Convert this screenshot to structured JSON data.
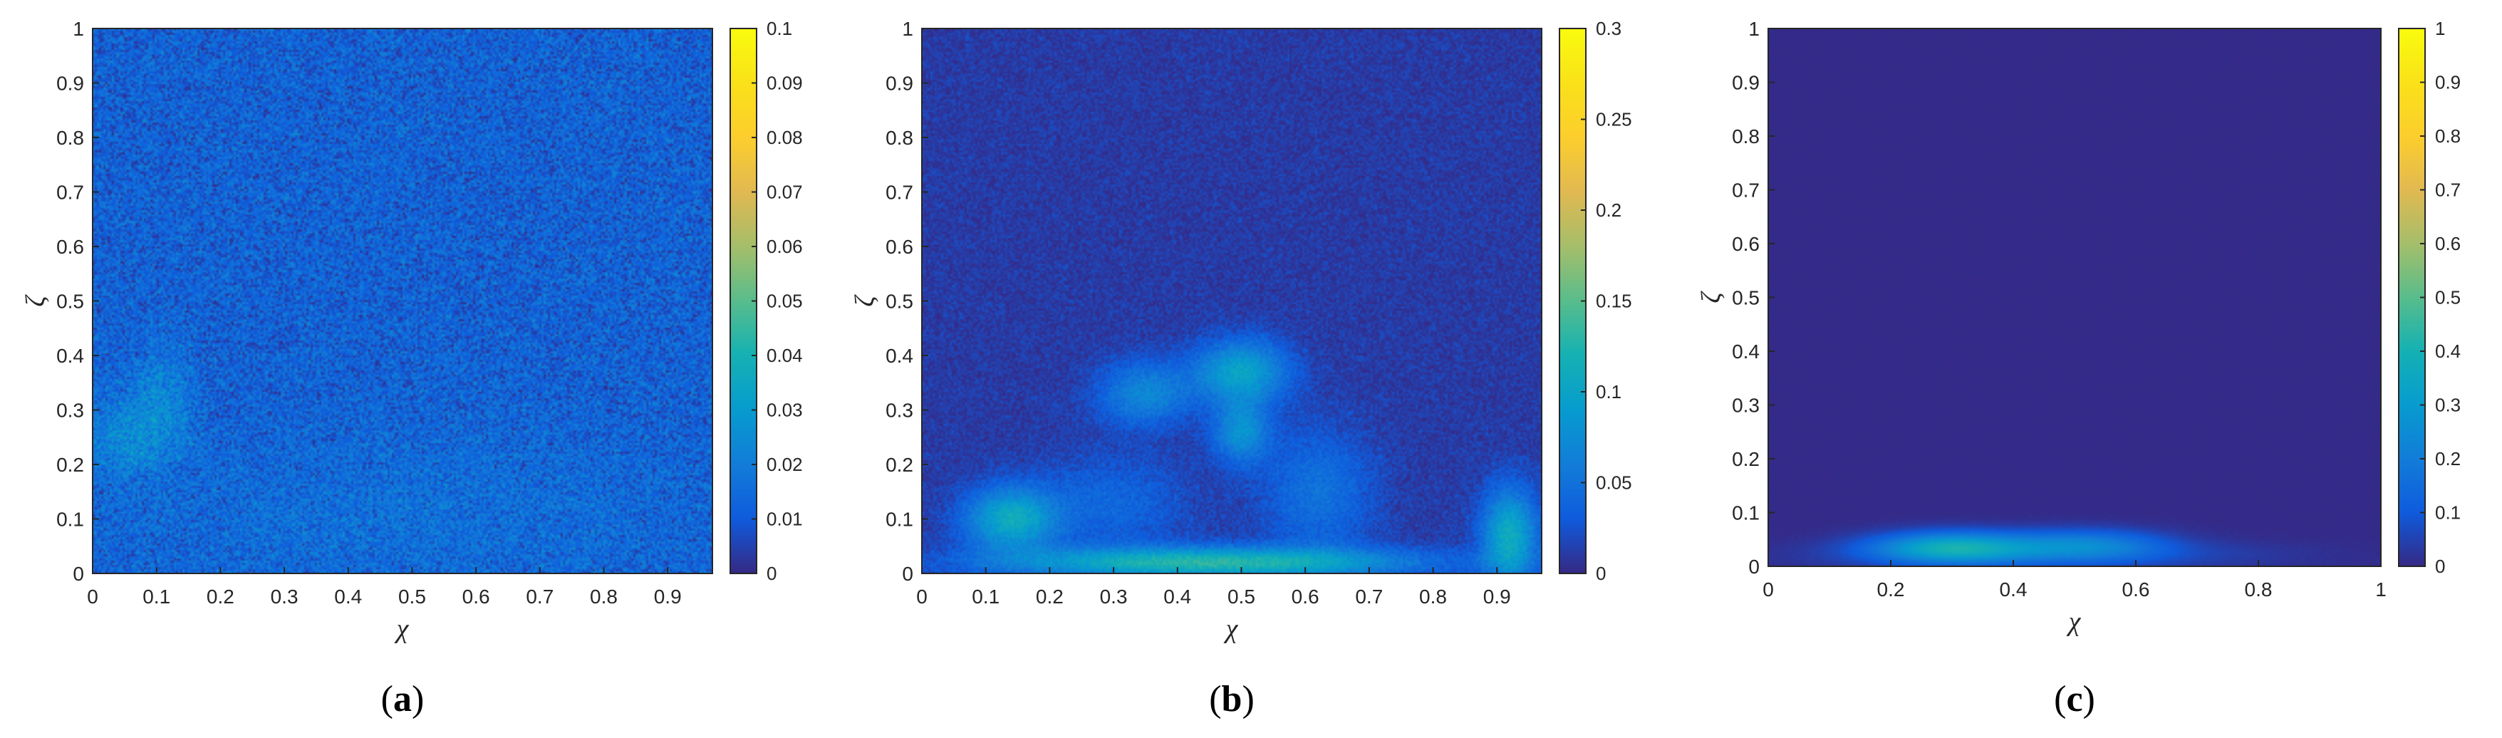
{
  "chart_data": [
    {
      "type": "heatmap",
      "panel": "a",
      "caption_open": "(",
      "caption_letter": "a",
      "caption_close": ")",
      "xlabel": "χ",
      "ylabel": "ζ",
      "xlim": [
        0,
        0.97
      ],
      "ylim": [
        0,
        1
      ],
      "xticks": [
        "0",
        "0.1",
        "0.2",
        "0.3",
        "0.4",
        "0.5",
        "0.6",
        "0.7",
        "0.8",
        "0.9"
      ],
      "yticks": [
        "0",
        "0.1",
        "0.2",
        "0.3",
        "0.4",
        "0.5",
        "0.6",
        "0.7",
        "0.8",
        "0.9",
        "1"
      ],
      "colorbar": {
        "range": [
          0,
          0.1
        ],
        "ticks": [
          "0",
          "0.01",
          "0.02",
          "0.03",
          "0.04",
          "0.05",
          "0.06",
          "0.07",
          "0.08",
          "0.09",
          "0.1"
        ]
      },
      "colormap": "parula",
      "background_level": 0.012,
      "noise": 0.01,
      "features": [
        {
          "x": 0.06,
          "y": 0.25,
          "sx": 0.05,
          "sy": 0.05,
          "value": 0.012
        },
        {
          "x": 0.11,
          "y": 0.33,
          "sx": 0.03,
          "sy": 0.06,
          "value": 0.01
        },
        {
          "x": 0.5,
          "y": 0.1,
          "sx": 0.3,
          "sy": 0.1,
          "value": 0.004
        }
      ]
    },
    {
      "type": "heatmap",
      "panel": "b",
      "caption_open": "(",
      "caption_letter": "b",
      "caption_close": ")",
      "xlabel": "χ",
      "ylabel": "ζ",
      "xlim": [
        0,
        0.97
      ],
      "ylim": [
        0,
        1
      ],
      "xticks": [
        "0",
        "0.1",
        "0.2",
        "0.3",
        "0.4",
        "0.5",
        "0.6",
        "0.7",
        "0.8",
        "0.9"
      ],
      "yticks": [
        "0",
        "0.1",
        "0.2",
        "0.3",
        "0.4",
        "0.5",
        "0.6",
        "0.7",
        "0.8",
        "0.9",
        "1"
      ],
      "colorbar": {
        "range": [
          0,
          0.3
        ],
        "ticks": [
          "0",
          "0.05",
          "0.1",
          "0.15",
          "0.2",
          "0.25",
          "0.3"
        ]
      },
      "colormap": "parula",
      "background_level": 0.01,
      "noise": 0.012,
      "features": [
        {
          "x": 0.45,
          "y": 0.02,
          "sx": 0.22,
          "sy": 0.02,
          "value": 0.12
        },
        {
          "x": 0.14,
          "y": 0.1,
          "sx": 0.05,
          "sy": 0.04,
          "value": 0.1
        },
        {
          "x": 0.92,
          "y": 0.07,
          "sx": 0.03,
          "sy": 0.06,
          "value": 0.1
        },
        {
          "x": 0.5,
          "y": 0.37,
          "sx": 0.05,
          "sy": 0.04,
          "value": 0.09
        },
        {
          "x": 0.5,
          "y": 0.26,
          "sx": 0.03,
          "sy": 0.04,
          "value": 0.07
        },
        {
          "x": 0.35,
          "y": 0.33,
          "sx": 0.05,
          "sy": 0.04,
          "value": 0.06
        },
        {
          "x": 0.62,
          "y": 0.15,
          "sx": 0.06,
          "sy": 0.08,
          "value": 0.04
        },
        {
          "x": 0.3,
          "y": 0.13,
          "sx": 0.08,
          "sy": 0.06,
          "value": 0.03
        }
      ]
    },
    {
      "type": "heatmap",
      "panel": "c",
      "caption_open": "(",
      "caption_letter": "c",
      "caption_close": ")",
      "xlabel": "χ",
      "ylabel": "ζ",
      "xlim": [
        0,
        1
      ],
      "ylim": [
        0,
        1
      ],
      "xticks": [
        "0",
        "0.2",
        "0.4",
        "0.6",
        "0.8",
        "1"
      ],
      "yticks": [
        "0",
        "0.1",
        "0.2",
        "0.3",
        "0.4",
        "0.5",
        "0.6",
        "0.7",
        "0.8",
        "0.9",
        "1"
      ],
      "colorbar": {
        "range": [
          0,
          1
        ],
        "ticks": [
          "0",
          "0.1",
          "0.2",
          "0.3",
          "0.4",
          "0.5",
          "0.6",
          "0.7",
          "0.8",
          "0.9",
          "1"
        ]
      },
      "colormap": "parula",
      "background_level": 0.0,
      "noise": 0.005,
      "features": [
        {
          "x": 0.3,
          "y": 0.035,
          "sx": 0.09,
          "sy": 0.02,
          "value": 0.35
        },
        {
          "x": 0.52,
          "y": 0.04,
          "sx": 0.09,
          "sy": 0.02,
          "value": 0.2
        },
        {
          "x": 0.45,
          "y": 0.02,
          "sx": 0.25,
          "sy": 0.02,
          "value": 0.08
        }
      ]
    }
  ]
}
